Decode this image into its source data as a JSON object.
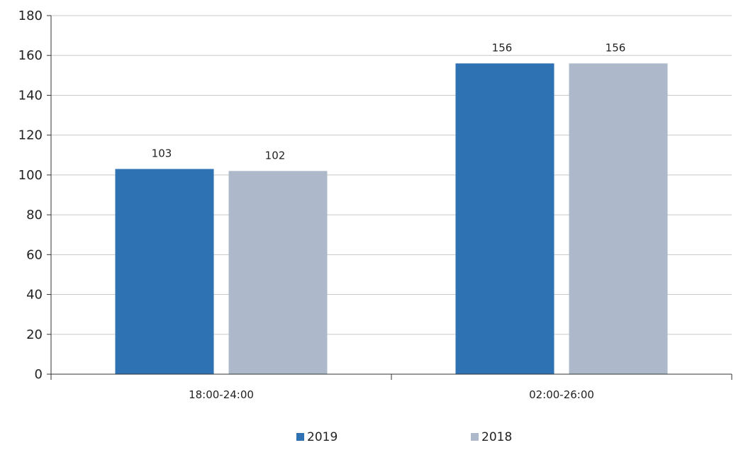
{
  "chart_data": {
    "type": "bar",
    "categories": [
      "18:00-24:00",
      "02:00-26:00"
    ],
    "series": [
      {
        "name": "2019",
        "values": [
          103,
          156
        ],
        "color": "#2e72b4"
      },
      {
        "name": "2018",
        "values": [
          102,
          156
        ],
        "color": "#adb9cb"
      }
    ],
    "ylim": [
      0,
      180
    ],
    "yticks": [
      "0",
      "20",
      "40",
      "60",
      "80",
      "100",
      "120",
      "140",
      "160",
      "180"
    ],
    "data_labels": [
      [
        "103",
        "156"
      ],
      [
        "102",
        "156"
      ]
    ],
    "grid": true,
    "legend_position": "bottom",
    "gridline_color": "#c8c8c8",
    "axis_color": "#333333"
  }
}
